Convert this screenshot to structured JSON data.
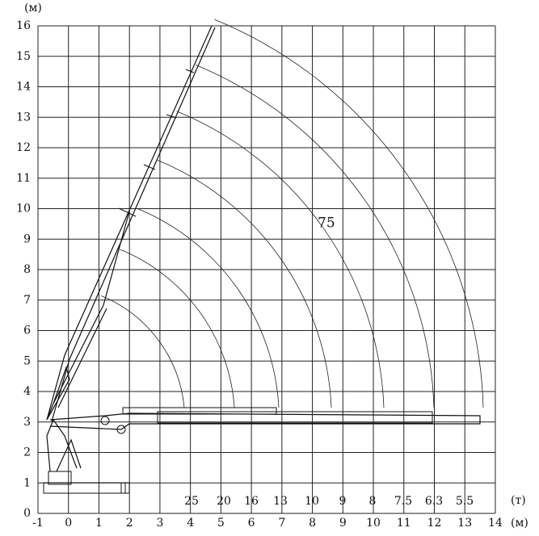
{
  "y_axis": {
    "unit": "(м)",
    "labels": [
      "0",
      "1",
      "2",
      "3",
      "4",
      "5",
      "6",
      "7",
      "8",
      "9",
      "10",
      "11",
      "12",
      "13",
      "14",
      "15",
      "16"
    ]
  },
  "x_axis": {
    "unit": "(м)",
    "labels": [
      "-1",
      "0",
      "1",
      "2",
      "3",
      "4",
      "5",
      "6",
      "7",
      "8",
      "9",
      "10",
      "11",
      "12",
      "13",
      "14"
    ]
  },
  "loads": {
    "unit": "(т)",
    "labels": [
      "25",
      "20",
      "16",
      "13",
      "10",
      "9",
      "8",
      "7.5",
      "6.3",
      "5.5"
    ]
  },
  "annotation": "75"
}
